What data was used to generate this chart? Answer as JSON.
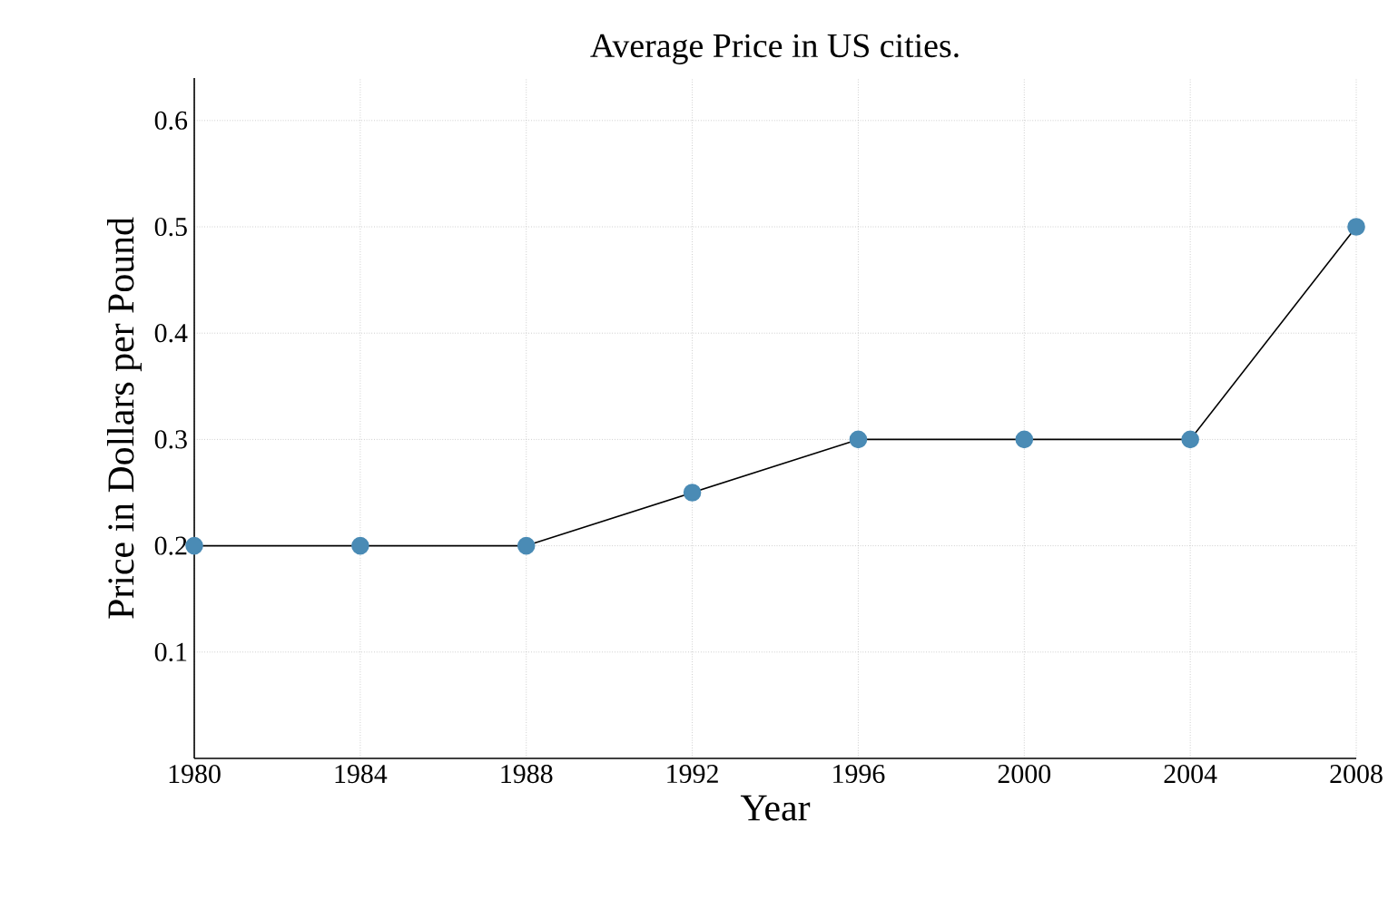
{
  "chart_data": {
    "type": "line",
    "title": "Average Price in US cities.",
    "xlabel": "Year",
    "ylabel": "Price in Dollars per Pound",
    "x": [
      1980,
      1984,
      1988,
      1992,
      1996,
      2000,
      2004,
      2008
    ],
    "series": [
      {
        "color": "#4a8bb5",
        "values": [
          0.2,
          0.2,
          0.2,
          0.25,
          0.3,
          0.3,
          0.3,
          0.5
        ]
      }
    ],
    "xlim": [
      1980,
      2008
    ],
    "xticks": [
      1980,
      1984,
      1988,
      1992,
      1996,
      2000,
      2004,
      2008
    ],
    "ylim": [
      0,
      0.64
    ],
    "yticks": [
      0.1,
      0.2,
      0.3,
      0.4,
      0.5,
      0.6
    ],
    "grid": true,
    "marker": "circle",
    "line_style": "solid"
  }
}
